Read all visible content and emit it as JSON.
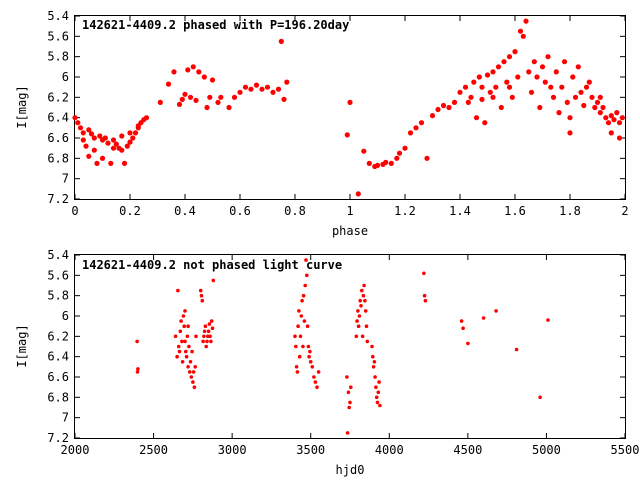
{
  "chart_data": [
    {
      "type": "scatter",
      "title": "142621-4409.2 phased with P=196.20day",
      "xlabel": "phase",
      "ylabel": "I[mag]",
      "xlim": [
        0,
        2
      ],
      "ylim": [
        5.4,
        7.2
      ],
      "y_inverted": true,
      "grid": false,
      "xticks": [
        "0",
        "0.2",
        "0.4",
        "0.6",
        "0.8",
        "1",
        "1.2",
        "1.4",
        "1.6",
        "1.8",
        "2"
      ],
      "yticks": [
        "5.4",
        "5.6",
        "5.8",
        "6",
        "6.2",
        "6.4",
        "6.6",
        "6.8",
        "7",
        "7.2"
      ],
      "marker_color": "#ff0000",
      "series": [
        {
          "points": [
            [
              0.0,
              6.4
            ],
            [
              0.01,
              6.45
            ],
            [
              0.02,
              6.5
            ],
            [
              0.03,
              6.55
            ],
            [
              0.03,
              6.62
            ],
            [
              0.04,
              6.68
            ],
            [
              0.05,
              6.52
            ],
            [
              0.05,
              6.78
            ],
            [
              0.06,
              6.56
            ],
            [
              0.07,
              6.6
            ],
            [
              0.07,
              6.72
            ],
            [
              0.08,
              6.85
            ],
            [
              0.09,
              6.58
            ],
            [
              0.1,
              6.62
            ],
            [
              0.1,
              6.8
            ],
            [
              0.11,
              6.6
            ],
            [
              0.12,
              6.65
            ],
            [
              0.13,
              6.85
            ],
            [
              0.14,
              6.62
            ],
            [
              0.15,
              6.66
            ],
            [
              0.16,
              6.7
            ],
            [
              0.17,
              6.58
            ],
            [
              0.18,
              6.85
            ],
            [
              0.19,
              6.68
            ],
            [
              0.2,
              6.64
            ],
            [
              0.21,
              6.6
            ],
            [
              0.22,
              6.55
            ],
            [
              0.23,
              6.5
            ],
            [
              0.24,
              6.45
            ],
            [
              0.25,
              6.42
            ],
            [
              0.26,
              6.4
            ],
            [
              0.14,
              6.7
            ],
            [
              0.17,
              6.72
            ],
            [
              0.2,
              6.55
            ],
            [
              0.23,
              6.48
            ],
            [
              0.31,
              6.25
            ],
            [
              0.34,
              6.07
            ],
            [
              0.36,
              5.95
            ],
            [
              0.38,
              6.27
            ],
            [
              0.39,
              6.22
            ],
            [
              0.4,
              6.17
            ],
            [
              0.41,
              5.93
            ],
            [
              0.42,
              6.2
            ],
            [
              0.43,
              5.9
            ],
            [
              0.44,
              6.23
            ],
            [
              0.45,
              5.95
            ],
            [
              0.47,
              6.0
            ],
            [
              0.48,
              6.3
            ],
            [
              0.49,
              6.2
            ],
            [
              0.5,
              6.03
            ],
            [
              0.52,
              6.25
            ],
            [
              0.53,
              6.2
            ],
            [
              0.56,
              6.3
            ],
            [
              0.58,
              6.2
            ],
            [
              0.6,
              6.15
            ],
            [
              0.62,
              6.1
            ],
            [
              0.64,
              6.12
            ],
            [
              0.66,
              6.08
            ],
            [
              0.68,
              6.12
            ],
            [
              0.7,
              6.1
            ],
            [
              0.72,
              6.15
            ],
            [
              0.74,
              6.12
            ],
            [
              0.75,
              5.65
            ],
            [
              0.76,
              6.22
            ],
            [
              0.77,
              6.05
            ],
            [
              0.99,
              6.57
            ],
            [
              1.0,
              6.25
            ],
            [
              1.03,
              7.15
            ],
            [
              1.05,
              6.73
            ],
            [
              1.07,
              6.85
            ],
            [
              1.09,
              6.88
            ],
            [
              1.1,
              6.87
            ],
            [
              1.12,
              6.86
            ],
            [
              1.13,
              6.84
            ],
            [
              1.15,
              6.85
            ],
            [
              1.17,
              6.8
            ],
            [
              1.18,
              6.75
            ],
            [
              1.2,
              6.7
            ],
            [
              1.22,
              6.55
            ],
            [
              1.24,
              6.5
            ],
            [
              1.26,
              6.45
            ],
            [
              1.28,
              6.8
            ],
            [
              1.3,
              6.38
            ],
            [
              1.32,
              6.32
            ],
            [
              1.34,
              6.28
            ],
            [
              1.36,
              6.3
            ],
            [
              1.38,
              6.25
            ],
            [
              1.4,
              6.15
            ],
            [
              1.42,
              6.1
            ],
            [
              1.44,
              6.2
            ],
            [
              1.45,
              6.05
            ],
            [
              1.46,
              6.4
            ],
            [
              1.47,
              6.0
            ],
            [
              1.48,
              6.22
            ],
            [
              1.49,
              6.45
            ],
            [
              1.5,
              5.98
            ],
            [
              1.51,
              6.15
            ],
            [
              1.52,
              5.95
            ],
            [
              1.53,
              6.1
            ],
            [
              1.54,
              5.9
            ],
            [
              1.55,
              6.3
            ],
            [
              1.56,
              5.85
            ],
            [
              1.57,
              6.05
            ],
            [
              1.58,
              5.8
            ],
            [
              1.59,
              6.2
            ],
            [
              1.6,
              5.75
            ],
            [
              1.61,
              6.0
            ],
            [
              1.62,
              5.55
            ],
            [
              1.63,
              5.6
            ],
            [
              1.64,
              5.45
            ],
            [
              1.65,
              5.95
            ],
            [
              1.66,
              6.15
            ],
            [
              1.67,
              5.85
            ],
            [
              1.68,
              6.0
            ],
            [
              1.69,
              6.3
            ],
            [
              1.7,
              5.9
            ],
            [
              1.71,
              6.05
            ],
            [
              1.72,
              5.8
            ],
            [
              1.73,
              6.1
            ],
            [
              1.74,
              6.2
            ],
            [
              1.75,
              5.95
            ],
            [
              1.76,
              6.35
            ],
            [
              1.77,
              6.1
            ],
            [
              1.78,
              5.85
            ],
            [
              1.79,
              6.25
            ],
            [
              1.8,
              6.4
            ],
            [
              1.81,
              6.0
            ],
            [
              1.82,
              6.2
            ],
            [
              1.83,
              5.9
            ],
            [
              1.84,
              6.15
            ],
            [
              1.85,
              6.28
            ],
            [
              1.86,
              6.1
            ],
            [
              1.87,
              6.05
            ],
            [
              1.88,
              6.2
            ],
            [
              1.89,
              6.3
            ],
            [
              1.9,
              6.25
            ],
            [
              1.91,
              6.35
            ],
            [
              1.92,
              6.3
            ],
            [
              1.93,
              6.4
            ],
            [
              1.94,
              6.45
            ],
            [
              1.95,
              6.38
            ],
            [
              1.96,
              6.42
            ],
            [
              1.97,
              6.35
            ],
            [
              1.98,
              6.45
            ],
            [
              1.99,
              6.4
            ],
            [
              1.8,
              6.55
            ],
            [
              1.91,
              6.2
            ],
            [
              1.95,
              6.55
            ],
            [
              1.98,
              6.6
            ],
            [
              1.58,
              6.1
            ],
            [
              1.52,
              6.2
            ],
            [
              1.48,
              6.1
            ],
            [
              1.43,
              6.25
            ]
          ]
        }
      ]
    },
    {
      "type": "scatter",
      "title": "142621-4409.2 not phased light curve",
      "xlabel": "hjd0",
      "ylabel": "I[mag]",
      "xlim": [
        2000,
        5500
      ],
      "ylim": [
        5.4,
        7.2
      ],
      "y_inverted": true,
      "grid": false,
      "xticks": [
        "2000",
        "2500",
        "3000",
        "3500",
        "4000",
        "4500",
        "5000",
        "5500"
      ],
      "yticks": [
        "5.4",
        "5.6",
        "5.8",
        "6",
        "6.2",
        "6.4",
        "6.6",
        "6.8",
        "7",
        "7.2"
      ],
      "marker_color": "#ff0000",
      "series": [
        {
          "points": [
            [
              2395,
              6.25
            ],
            [
              2398,
              6.55
            ],
            [
              2400,
              6.52
            ],
            [
              2640,
              6.2
            ],
            [
              2650,
              6.4
            ],
            [
              2655,
              5.75
            ],
            [
              2660,
              6.3
            ],
            [
              2665,
              6.35
            ],
            [
              2670,
              6.15
            ],
            [
              2675,
              6.05
            ],
            [
              2680,
              6.25
            ],
            [
              2685,
              6.45
            ],
            [
              2690,
              6.0
            ],
            [
              2695,
              6.1
            ],
            [
              2700,
              6.25
            ],
            [
              2705,
              6.35
            ],
            [
              2710,
              6.4
            ],
            [
              2715,
              6.2
            ],
            [
              2720,
              6.5
            ],
            [
              2725,
              6.3
            ],
            [
              2730,
              6.55
            ],
            [
              2735,
              6.45
            ],
            [
              2740,
              6.6
            ],
            [
              2745,
              6.35
            ],
            [
              2750,
              6.65
            ],
            [
              2755,
              6.55
            ],
            [
              2760,
              6.7
            ],
            [
              2765,
              6.5
            ],
            [
              2770,
              6.2
            ],
            [
              2700,
              5.95
            ],
            [
              2720,
              6.1
            ],
            [
              2800,
              5.75
            ],
            [
              2805,
              5.8
            ],
            [
              2810,
              5.85
            ],
            [
              2815,
              6.25
            ],
            [
              2820,
              6.2
            ],
            [
              2825,
              6.15
            ],
            [
              2830,
              6.1
            ],
            [
              2835,
              6.3
            ],
            [
              2840,
              6.25
            ],
            [
              2845,
              6.2
            ],
            [
              2850,
              6.15
            ],
            [
              2855,
              6.08
            ],
            [
              2860,
              6.2
            ],
            [
              2865,
              6.25
            ],
            [
              2870,
              6.05
            ],
            [
              2875,
              6.12
            ],
            [
              2880,
              5.65
            ],
            [
              3400,
              6.2
            ],
            [
              3405,
              6.3
            ],
            [
              3410,
              6.5
            ],
            [
              3415,
              6.55
            ],
            [
              3420,
              6.1
            ],
            [
              3425,
              5.95
            ],
            [
              3430,
              6.4
            ],
            [
              3435,
              6.2
            ],
            [
              3440,
              6.0
            ],
            [
              3445,
              5.85
            ],
            [
              3450,
              6.3
            ],
            [
              3455,
              5.8
            ],
            [
              3460,
              6.05
            ],
            [
              3465,
              5.7
            ],
            [
              3470,
              5.45
            ],
            [
              3475,
              5.6
            ],
            [
              3480,
              6.1
            ],
            [
              3485,
              6.3
            ],
            [
              3490,
              6.4
            ],
            [
              3495,
              6.35
            ],
            [
              3500,
              6.45
            ],
            [
              3510,
              6.5
            ],
            [
              3520,
              6.6
            ],
            [
              3530,
              6.65
            ],
            [
              3540,
              6.7
            ],
            [
              3550,
              6.55
            ],
            [
              3730,
              6.6
            ],
            [
              3735,
              7.15
            ],
            [
              3740,
              6.75
            ],
            [
              3745,
              6.9
            ],
            [
              3750,
              6.85
            ],
            [
              3755,
              6.7
            ],
            [
              3790,
              6.2
            ],
            [
              3795,
              6.05
            ],
            [
              3800,
              5.95
            ],
            [
              3805,
              6.1
            ],
            [
              3810,
              6.0
            ],
            [
              3815,
              5.85
            ],
            [
              3820,
              5.9
            ],
            [
              3825,
              5.75
            ],
            [
              3830,
              6.2
            ],
            [
              3835,
              5.8
            ],
            [
              3840,
              5.7
            ],
            [
              3845,
              5.85
            ],
            [
              3850,
              5.95
            ],
            [
              3855,
              6.1
            ],
            [
              3860,
              6.25
            ],
            [
              3890,
              6.3
            ],
            [
              3895,
              6.4
            ],
            [
              3900,
              6.5
            ],
            [
              3905,
              6.45
            ],
            [
              3910,
              6.6
            ],
            [
              3915,
              6.7
            ],
            [
              3920,
              6.8
            ],
            [
              3925,
              6.85
            ],
            [
              3930,
              6.75
            ],
            [
              3935,
              6.65
            ],
            [
              3940,
              6.88
            ],
            [
              4220,
              5.58
            ],
            [
              4225,
              5.8
            ],
            [
              4230,
              5.85
            ],
            [
              4460,
              6.05
            ],
            [
              4470,
              6.12
            ],
            [
              4500,
              6.27
            ],
            [
              4600,
              6.02
            ],
            [
              4680,
              5.95
            ],
            [
              4810,
              6.33
            ],
            [
              4960,
              6.8
            ],
            [
              5010,
              6.04
            ]
          ]
        }
      ]
    }
  ]
}
